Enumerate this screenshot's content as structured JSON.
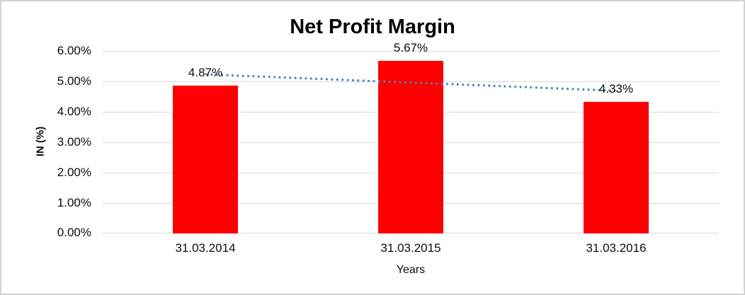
{
  "chart_data": {
    "type": "bar",
    "title": "Net Profit Margin",
    "categories": [
      "31.03.2014",
      "31.03.2015",
      "31.03.2016"
    ],
    "values": [
      4.87,
      5.67,
      4.33
    ],
    "data_labels": [
      "4.87%",
      "5.67%",
      "4.33%"
    ],
    "xlabel": "Years",
    "ylabel": "IN (%)",
    "ylim": [
      0,
      6
    ],
    "y_tick_labels": [
      "6.00%",
      "5.00%",
      "4.00%",
      "3.00%",
      "2.00%",
      "1.00%",
      "0.00%"
    ],
    "grid": true,
    "legend": "none",
    "bar_color": "#ff0000",
    "gridline_color": "#d9d9d9",
    "trendline": {
      "type": "linear",
      "line_style": "dotted",
      "color": "#4f81bd",
      "start_value": 5.23,
      "end_value": 4.69
    }
  }
}
